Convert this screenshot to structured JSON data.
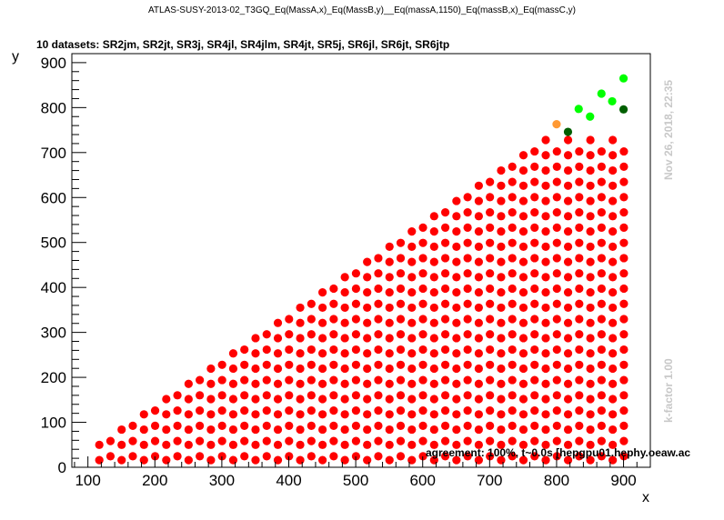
{
  "header": {
    "title": "ATLAS-SUSY-2013-02_T3GQ_Eq(MassA,x)_Eq(MassB,y)__Eq(massA,1150)_Eq(massB,x)_Eq(massC,y)",
    "subtitle": "10 datasets: SR2jm, SR2jt, SR3j, SR4jl, SR4jlm, SR4jt, SR5j, SR6jl, SR6jt, SR6jtp"
  },
  "side": {
    "date": "Nov 26, 2018, 22:35",
    "kfactor": "k-factor 1.00"
  },
  "footer": {
    "agreement": "agreement: 100%, t~0.0s [hepgpu01.hephy.oeaw.ac"
  },
  "colors": {
    "excluded": "#ff0000",
    "allowed": "#00ff00",
    "allowed_dark": "#005f00",
    "mismatch": "#ff9933",
    "side_text": "#c8c8c8"
  },
  "chart_data": {
    "type": "scatter",
    "xlabel": "x",
    "ylabel": "y",
    "xlim": [
      76,
      940
    ],
    "ylim": [
      0,
      920
    ],
    "xticks": [
      100,
      200,
      300,
      400,
      500,
      600,
      700,
      800,
      900
    ],
    "yticks": [
      0,
      100,
      200,
      300,
      400,
      500,
      600,
      700,
      800,
      900
    ],
    "grid": false,
    "special_points": [
      {
        "x": 800,
        "y": 763,
        "category": "mismatch"
      },
      {
        "x": 817,
        "y": 746,
        "category": "allowed_dark"
      },
      {
        "x": 900,
        "y": 796,
        "category": "allowed_dark"
      },
      {
        "x": 833,
        "y": 797,
        "category": "allowed"
      },
      {
        "x": 850,
        "y": 780,
        "category": "allowed"
      },
      {
        "x": 867,
        "y": 831,
        "category": "allowed"
      },
      {
        "x": 883,
        "y": 814,
        "category": "allowed"
      },
      {
        "x": 900,
        "y": 865,
        "category": "allowed"
      }
    ],
    "grid_rule": {
      "x_start": 117,
      "x_step": 16.67,
      "x_count": 48,
      "y_start": 16,
      "y_step": 16.95,
      "rows_by_parity": "points at odd column offsets shifted by half a step",
      "category": "excluded"
    }
  }
}
